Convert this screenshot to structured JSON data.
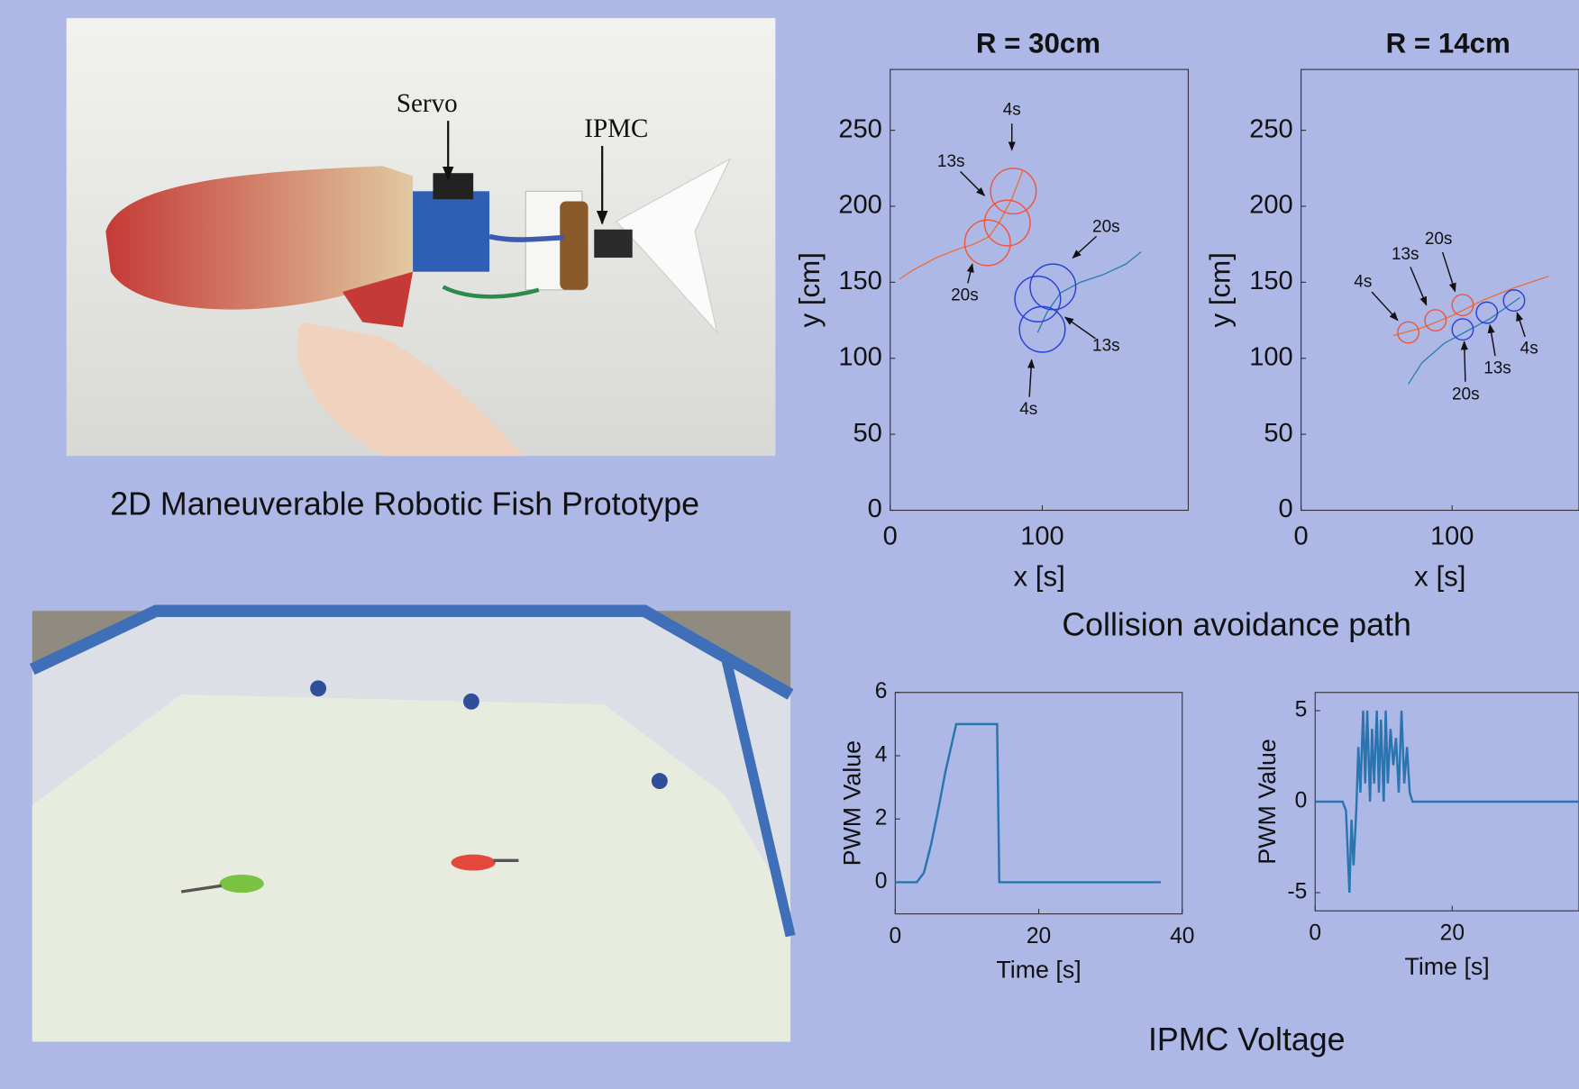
{
  "photos": [
    {
      "labels": [
        "Servo",
        "IPMC"
      ],
      "caption": "2D Maneuverable Robotic Fish Prototype"
    },
    {
      "caption": null
    }
  ],
  "captions": {
    "paths": "Collision avoidance path",
    "voltage": "IPMC Voltage"
  },
  "chart_data": [
    {
      "type": "line",
      "title": "R = 30cm",
      "x_label": "x [s]",
      "y_label": "y [cm]",
      "xlim": [
        0,
        196
      ],
      "ylim": [
        0,
        290
      ],
      "xticks": [
        0,
        100
      ],
      "yticks": [
        0,
        50,
        100,
        150,
        200,
        250
      ],
      "series": [
        {
          "color": "#e8703a",
          "x": [
            6,
            15,
            30,
            45,
            55,
            65,
            72,
            80,
            87
          ],
          "values": [
            152,
            158,
            166,
            172,
            175,
            180,
            190,
            205,
            223
          ]
        },
        {
          "color": "#2a7fb0",
          "x": [
            97,
            103,
            112,
            125,
            140,
            155,
            165
          ],
          "values": [
            117,
            130,
            143,
            150,
            155,
            162,
            170
          ]
        }
      ],
      "circles": [
        {
          "color": "#f0553a",
          "r": 15,
          "x": [
            81,
            77,
            64
          ],
          "y": [
            210,
            189,
            176
          ]
        },
        {
          "color": "#2a3fd8",
          "r": 15,
          "x": [
            100,
            97,
            107
          ],
          "y": [
            119,
            139,
            147
          ]
        }
      ],
      "annotations": [
        {
          "text": "4s",
          "x": 80,
          "y": 237,
          "text_x": 80,
          "text_y": 263
        },
        {
          "text": "13s",
          "x": 62,
          "y": 207,
          "text_x": 40,
          "text_y": 229
        },
        {
          "text": "20s",
          "x": 54,
          "y": 162,
          "text_x": 49,
          "text_y": 141
        },
        {
          "text": "20s",
          "x": 120,
          "y": 166,
          "text_x": 142,
          "text_y": 186
        },
        {
          "text": "13s",
          "x": 115,
          "y": 127,
          "text_x": 142,
          "text_y": 108
        },
        {
          "text": "4s",
          "x": 93,
          "y": 99,
          "text_x": 91,
          "text_y": 66
        }
      ]
    },
    {
      "type": "line",
      "title": "R = 14cm",
      "x_label": "x [s]",
      "y_label": "y [cm]",
      "xlim": [
        0,
        184
      ],
      "ylim": [
        0,
        290
      ],
      "xticks": [
        0,
        100
      ],
      "yticks": [
        0,
        50,
        100,
        150,
        200,
        250
      ],
      "series": [
        {
          "color": "#e8703a",
          "x": [
            61,
            80,
            100,
            120,
            140,
            164
          ],
          "values": [
            115,
            120,
            128,
            138,
            146,
            154
          ]
        },
        {
          "color": "#2a7fb0",
          "x": [
            71,
            80,
            95,
            110,
            125,
            145
          ],
          "values": [
            83,
            97,
            110,
            118,
            126,
            140
          ]
        }
      ],
      "circles": [
        {
          "color": "#f0553a",
          "r": 7,
          "x": [
            71,
            89,
            107
          ],
          "y": [
            117,
            125,
            135
          ]
        },
        {
          "color": "#2a3fd8",
          "r": 7,
          "x": [
            107,
            123,
            141
          ],
          "y": [
            119,
            130,
            138
          ]
        }
      ],
      "annotations": [
        {
          "text": "4s",
          "x": 64,
          "y": 125,
          "text_x": 41,
          "text_y": 150
        },
        {
          "text": "13s",
          "x": 83,
          "y": 135,
          "text_x": 69,
          "text_y": 168
        },
        {
          "text": "20s",
          "x": 102,
          "y": 144,
          "text_x": 91,
          "text_y": 178
        },
        {
          "text": "4s",
          "x": 143,
          "y": 130,
          "text_x": 151,
          "text_y": 106
        },
        {
          "text": "13s",
          "x": 125,
          "y": 122,
          "text_x": 130,
          "text_y": 93
        },
        {
          "text": "20s",
          "x": 108,
          "y": 111,
          "text_x": 109,
          "text_y": 76
        }
      ]
    },
    {
      "type": "line",
      "x_label": "Time [s]",
      "y_label": "PWM Value",
      "xlim": [
        0,
        40
      ],
      "ylim": [
        -1,
        6
      ],
      "xticks": [
        0,
        20,
        40
      ],
      "yticks": [
        0,
        2,
        4,
        6
      ],
      "series": [
        {
          "color": "#2a74b0",
          "x": [
            0,
            3,
            4,
            5,
            6,
            7,
            8,
            8.5,
            10,
            12,
            14.2,
            14.5,
            20,
            30,
            37
          ],
          "values": [
            0,
            0,
            0.3,
            1.2,
            2.3,
            3.5,
            4.5,
            5,
            5,
            5,
            5,
            0,
            0,
            0,
            0
          ]
        }
      ]
    },
    {
      "type": "line",
      "x_label": "Time [s]",
      "y_label": "PWM Value",
      "xlim": [
        0,
        38.5
      ],
      "ylim": [
        -6,
        6
      ],
      "xticks": [
        0,
        20
      ],
      "yticks": [
        -5,
        0,
        5
      ],
      "series": [
        {
          "color": "#2a74b0",
          "x": [
            0,
            4,
            4.5,
            5,
            5.3,
            5.6,
            6,
            6.3,
            6.6,
            7,
            7.3,
            7.6,
            8,
            8.3,
            8.6,
            9,
            9.3,
            9.6,
            10,
            10.3,
            10.6,
            11,
            11.4,
            11.8,
            12.2,
            12.6,
            13,
            13.4,
            13.8,
            14.2,
            15,
            20,
            30,
            38.5
          ],
          "values": [
            0,
            0,
            -0.5,
            -5,
            -1,
            -3.5,
            -0.5,
            3,
            0.5,
            5,
            1,
            5,
            0,
            4,
            1,
            5,
            0.5,
            4.5,
            0,
            5,
            1,
            4,
            2,
            3.5,
            0.5,
            5,
            1,
            3,
            0.5,
            0,
            0,
            0,
            0,
            0
          ]
        }
      ]
    }
  ]
}
